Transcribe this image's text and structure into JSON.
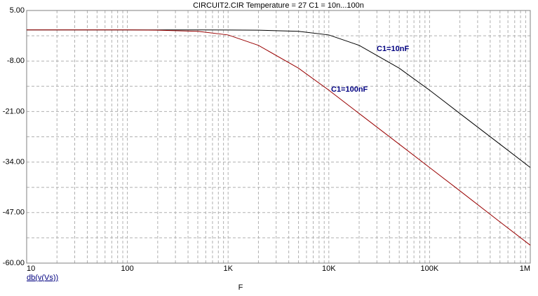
{
  "chart_data": {
    "type": "line",
    "title": "CIRCUIT2.CIR Temperature = 27 C1 = 10n...100n",
    "y_label": "db(v(Vs))",
    "x_label": "F",
    "log_x": true,
    "grid": true,
    "x": [
      10,
      100,
      200,
      500,
      1000,
      2000,
      5000,
      10000,
      20000,
      50000,
      100000,
      200000,
      500000,
      1000000
    ],
    "series": [
      {
        "name": "C1=10nF",
        "color": "#000000",
        "values": [
          0,
          0,
          0,
          0,
          -0.01,
          -0.06,
          -0.36,
          -1.29,
          -3.97,
          -9.84,
          -15.5,
          -21.5,
          -29.4,
          -35.4
        ]
      },
      {
        "name": "C1=100nF",
        "color": "#990000",
        "values": [
          0,
          0,
          -0.06,
          -0.36,
          -1.29,
          -3.97,
          -9.84,
          -15.5,
          -21.5,
          -29.4,
          -35.4,
          -41.4,
          -49.4,
          -55.4
        ]
      }
    ],
    "xlim": [
      10,
      1000000
    ],
    "xticks": [
      10,
      100,
      {
        "value": 1000,
        "label": "1K"
      },
      {
        "value": 10000,
        "label": "10K"
      },
      {
        "value": 100000,
        "label": "100K"
      },
      {
        "value": 1000000,
        "label": "1M"
      }
    ],
    "ylim": [
      -60,
      5
    ],
    "yticks": [
      {
        "value": 5,
        "label": "5.00"
      },
      {
        "value": -8,
        "label": "-8.00"
      },
      {
        "value": -21,
        "label": "-21.00"
      },
      {
        "value": -34,
        "label": "-34.00"
      },
      {
        "value": -47,
        "label": "-47.00"
      },
      {
        "value": -60,
        "label": "-60.00"
      }
    ]
  }
}
